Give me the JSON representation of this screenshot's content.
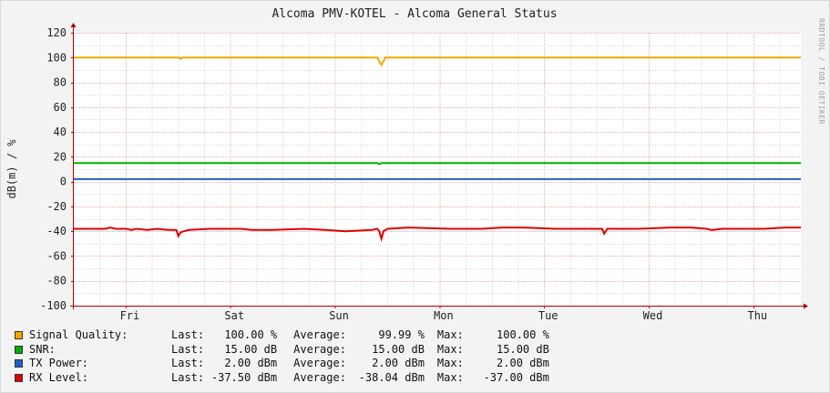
{
  "chart_data": {
    "type": "line",
    "title": "Alcoma PMV-KOTEL - Alcoma General Status",
    "ylabel": "dB(m) / %",
    "watermark": "RRDTOOL / TOBI OETIKER",
    "ylim": [
      -100,
      120
    ],
    "yticks": [
      120,
      100,
      80,
      60,
      40,
      20,
      0,
      -20,
      -40,
      -60,
      -80,
      -100
    ],
    "ytick_labels": [
      "120",
      "100",
      "80",
      "60",
      "40",
      "20",
      "0",
      "-20",
      "-40",
      "-60",
      "-80",
      "-100"
    ],
    "xlim": [
      0,
      6.95
    ],
    "x_categories": [
      "Fri",
      "Sat",
      "Sun",
      "Mon",
      "Tue",
      "Wed",
      "Thu"
    ],
    "grid": true,
    "series": [
      {
        "name": "Signal Quality:",
        "color": "#f0a800",
        "x": [
          0,
          1.0,
          1.02,
          1.04,
          2.9,
          2.92,
          2.94,
          2.96,
          2.98,
          6.95
        ],
        "y": [
          100,
          100,
          99,
          100,
          100,
          97,
          94,
          97,
          100,
          100
        ],
        "last": "100.00 %",
        "average": "99.99 %",
        "max": "100.00 %"
      },
      {
        "name": "SNR:",
        "color": "#00b000",
        "x": [
          0,
          2.9,
          2.92,
          2.94,
          6.95
        ],
        "y": [
          15,
          15,
          14,
          15,
          15
        ],
        "last": "15.00 dB",
        "average": "15.00 dB",
        "max": "15.00 dB"
      },
      {
        "name": "TX Power:",
        "color": "#2060c8",
        "x": [
          0,
          6.95
        ],
        "y": [
          2,
          2
        ],
        "last": "2.00 dBm",
        "average": "2.00 dBm",
        "max": "2.00 dBm"
      },
      {
        "name": "RX Level:",
        "color": "#e00000",
        "x": [
          0,
          0.3,
          0.35,
          0.4,
          0.5,
          0.55,
          0.6,
          0.7,
          0.8,
          0.9,
          0.98,
          1.0,
          1.02,
          1.05,
          1.1,
          1.3,
          1.6,
          1.7,
          1.9,
          2.2,
          2.4,
          2.6,
          2.85,
          2.9,
          2.92,
          2.94,
          2.96,
          2.98,
          3.0,
          3.2,
          3.6,
          3.9,
          4.1,
          4.3,
          4.6,
          5.0,
          5.05,
          5.07,
          5.1,
          5.4,
          5.7,
          5.9,
          6.05,
          6.1,
          6.2,
          6.4,
          6.6,
          6.8,
          6.95
        ],
        "y": [
          -38,
          -38,
          -37,
          -38,
          -38,
          -39,
          -38,
          -39,
          -38,
          -39,
          -39,
          -44,
          -41,
          -40,
          -39,
          -38,
          -38,
          -39,
          -39,
          -38,
          -39,
          -40,
          -39,
          -38,
          -40,
          -46,
          -40,
          -39,
          -38,
          -37,
          -38,
          -38,
          -37,
          -37,
          -38,
          -38,
          -38,
          -42,
          -38,
          -38,
          -37,
          -37,
          -38,
          -39,
          -38,
          -38,
          -38,
          -37,
          -37
        ],
        "last": "-37.50 dBm",
        "average": "-38.04 dBm",
        "max": "-37.00 dBm"
      }
    ],
    "legend": {
      "position": "bottom-left",
      "last_label": "Last:",
      "average_label": "Average:",
      "max_label": "Max:"
    }
  }
}
